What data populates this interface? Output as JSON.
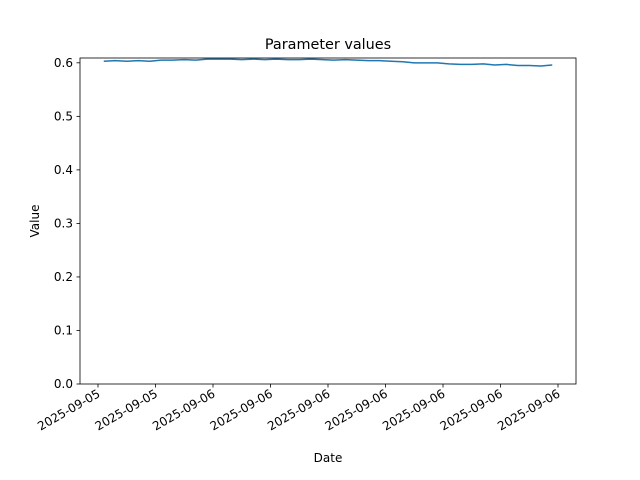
{
  "chart_data": {
    "type": "line",
    "title": "Parameter values",
    "x_label": "Date",
    "y_label": "Value",
    "x": [
      0.1,
      0.3,
      0.5,
      0.7,
      0.9,
      1.1,
      1.3,
      1.5,
      1.7,
      1.9,
      2.1,
      2.3,
      2.5,
      2.7,
      2.9,
      3.1,
      3.3,
      3.5,
      3.7,
      3.9,
      4.1,
      4.3,
      4.5,
      4.7,
      4.9,
      5.1,
      5.3,
      5.5,
      5.7,
      5.9,
      6.1,
      6.3,
      6.5,
      6.7,
      6.9,
      7.1,
      7.3,
      7.5,
      7.7,
      7.9
    ],
    "series": [
      {
        "name": "Value",
        "color": "#1f77b4",
        "values": [
          0.603,
          0.604,
          0.603,
          0.604,
          0.603,
          0.605,
          0.605,
          0.606,
          0.605,
          0.607,
          0.607,
          0.607,
          0.606,
          0.607,
          0.606,
          0.607,
          0.606,
          0.606,
          0.607,
          0.606,
          0.605,
          0.606,
          0.605,
          0.604,
          0.604,
          0.603,
          0.602,
          0.6,
          0.6,
          0.6,
          0.598,
          0.597,
          0.597,
          0.598,
          0.596,
          0.597,
          0.595,
          0.595,
          0.594,
          0.596
        ]
      }
    ],
    "xlim": [
      -0.313,
      8.313
    ],
    "xticks": [
      {
        "value": 0,
        "label": "2025-09-05"
      },
      {
        "value": 1,
        "label": "2025-09-05"
      },
      {
        "value": 2,
        "label": "2025-09-06"
      },
      {
        "value": 3,
        "label": "2025-09-06"
      },
      {
        "value": 4,
        "label": "2025-09-06"
      },
      {
        "value": 5,
        "label": "2025-09-06"
      },
      {
        "value": 6,
        "label": "2025-09-06"
      },
      {
        "value": 7,
        "label": "2025-09-06"
      },
      {
        "value": 8,
        "label": "2025-09-06"
      }
    ],
    "ylim": [
      0,
      0.609
    ],
    "yticks": [
      {
        "value": 0,
        "label": "0.0"
      },
      0.1,
      0.2,
      0.3,
      0.4,
      0.5,
      0.6
    ],
    "grid": false
  }
}
